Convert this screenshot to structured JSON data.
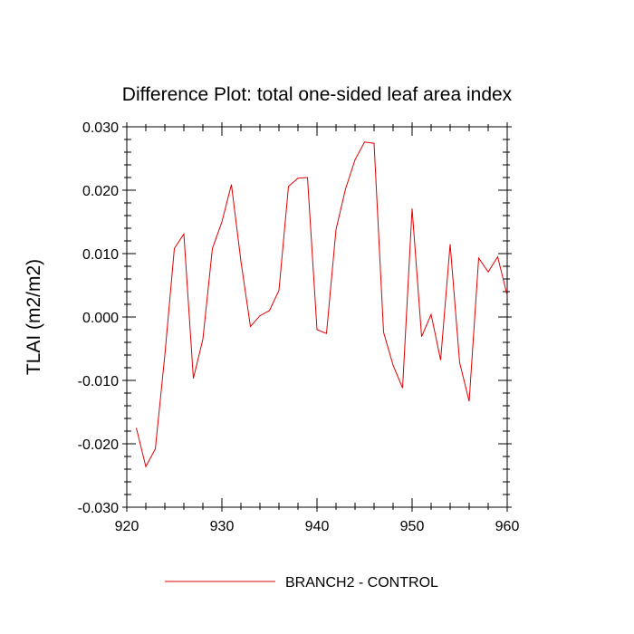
{
  "chart_data": {
    "type": "line",
    "title": "Difference Plot: total one-sided leaf area index",
    "xlabel": "",
    "ylabel": "TLAI  (m2/m2)",
    "xlim": [
      920,
      960
    ],
    "ylim": [
      -0.03,
      0.03
    ],
    "x_ticks": [
      920,
      930,
      940,
      950,
      960
    ],
    "x_tick_labels": [
      "920",
      "930",
      "940",
      "950",
      "960"
    ],
    "y_ticks": [
      -0.03,
      -0.02,
      -0.01,
      0.0,
      0.01,
      0.02,
      0.03
    ],
    "y_tick_labels": [
      "-0.030",
      "-0.020",
      "-0.010",
      "0.000",
      "0.010",
      "0.020",
      "0.030"
    ],
    "legend_position": "bottom-center",
    "series": [
      {
        "name": "BRANCH2 - CONTROL",
        "color": "#e00000",
        "x": [
          921,
          922,
          923,
          924,
          925,
          926,
          927,
          928,
          929,
          930,
          931,
          932,
          933,
          934,
          935,
          936,
          937,
          938,
          939,
          940,
          941,
          942,
          943,
          944,
          945,
          946,
          947,
          948,
          949,
          950,
          951,
          952,
          953,
          954,
          955,
          956,
          957,
          958,
          959,
          960
        ],
        "values": [
          -0.0175,
          -0.0236,
          -0.0208,
          -0.006,
          0.0108,
          0.0131,
          -0.0097,
          -0.0035,
          0.0108,
          0.015,
          0.0209,
          0.0088,
          -0.0015,
          0.0002,
          0.001,
          0.0042,
          0.0206,
          0.0219,
          0.022,
          -0.002,
          -0.0026,
          0.0138,
          0.0202,
          0.0248,
          0.0276,
          0.0274,
          -0.0024,
          -0.0076,
          -0.0112,
          0.0171,
          -0.0031,
          0.0004,
          -0.0068,
          0.0115,
          -0.0072,
          -0.0133,
          0.0093,
          0.0071,
          0.0095,
          0.0034
        ]
      }
    ]
  }
}
